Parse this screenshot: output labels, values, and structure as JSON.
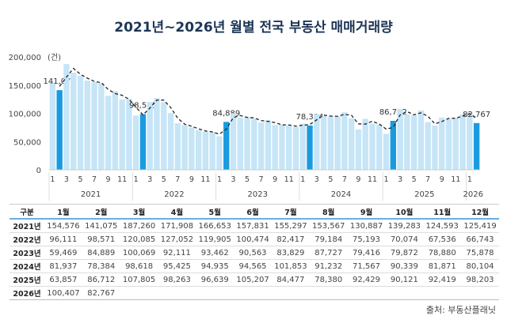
{
  "title": "2021년~2026년 월별 전국 부동산 매매거래량",
  "source": "출처: 부동산플래닛",
  "colors": {
    "bar": "#c6e5f7",
    "highlight": "#1a9be0",
    "line": "#222222"
  },
  "chart_data": {
    "type": "bar",
    "title": "2021년~2026년 월별 전국 부동산 매매거래량",
    "unit_label": "(건)",
    "ylim": [
      0,
      200000
    ],
    "yticks": [
      0,
      50000,
      100000,
      150000,
      200000
    ],
    "ytick_labels": [
      "0",
      "50,000",
      "100,000",
      "150,000",
      "200,000"
    ],
    "years": [
      "2021",
      "2022",
      "2023",
      "2024",
      "2025",
      "2026"
    ],
    "month_tick_labels": [
      "1",
      "3",
      "5",
      "7",
      "9",
      "11"
    ],
    "highlight_month": 2,
    "annotations": [
      "141,075",
      "98,571",
      "84,889",
      "78,384",
      "86,712",
      "82,767"
    ],
    "trend_line": "dashed moving average",
    "grid": false
  },
  "table": {
    "headers": [
      "구분",
      "1월",
      "2월",
      "3월",
      "4월",
      "5월",
      "6월",
      "7월",
      "8월",
      "9월",
      "10월",
      "11월",
      "12월"
    ],
    "rows": [
      {
        "year": "2021년",
        "values": [
          "154,576",
          "141,075",
          "187,260",
          "171,908",
          "166,653",
          "157,831",
          "155,297",
          "153,567",
          "130,887",
          "139,283",
          "124,593",
          "125,419"
        ]
      },
      {
        "year": "2022년",
        "values": [
          "96,111",
          "98,571",
          "120,085",
          "127,052",
          "119,905",
          "100,474",
          "82,417",
          "79,184",
          "75,193",
          "70,074",
          "67,536",
          "66,743"
        ]
      },
      {
        "year": "2023년",
        "values": [
          "59,469",
          "84,889",
          "100,069",
          "92,111",
          "93,462",
          "90,563",
          "83,829",
          "87,727",
          "79,416",
          "79,872",
          "78,880",
          "75,878"
        ]
      },
      {
        "year": "2024년",
        "values": [
          "81,937",
          "78,384",
          "98,618",
          "95,425",
          "94,935",
          "94,565",
          "101,853",
          "91,232",
          "71,567",
          "90,339",
          "81,871",
          "80,104"
        ]
      },
      {
        "year": "2025년",
        "values": [
          "63,857",
          "86,712",
          "107,805",
          "98,263",
          "96,639",
          "105,207",
          "84,477",
          "78,380",
          "92,429",
          "90,121",
          "92,419",
          "98,203"
        ]
      },
      {
        "year": "2026년",
        "values": [
          "100,407",
          "82,767",
          "",
          "",
          "",
          "",
          "",
          "",
          "",
          "",
          "",
          ""
        ]
      }
    ]
  }
}
